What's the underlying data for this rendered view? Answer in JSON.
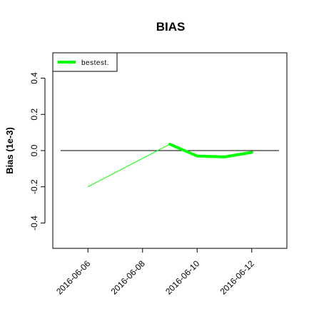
{
  "chart_data": {
    "type": "line",
    "title": "BIAS",
    "xlabel": "",
    "ylabel": "Bias (1e-3)",
    "x_ticks": [
      "2016-06-06",
      "2016-06-08",
      "2016-06-10",
      "2016-06-12"
    ],
    "x_tick_colors": [
      "#000000",
      "#000000",
      "#000000",
      "#ff0000"
    ],
    "y_ticks": [
      -0.4,
      -0.2,
      0.0,
      0.2,
      0.4
    ],
    "xlim": [
      "2016-06-05",
      "2016-06-13"
    ],
    "ylim": [
      -0.54,
      0.54
    ],
    "reference_line": 0,
    "grid": false,
    "legend": {
      "position": "top-left",
      "entries": [
        "bestest."
      ]
    },
    "series": [
      {
        "name": "bestest.",
        "color": "#00ff00",
        "segments": [
          {
            "style": "thin",
            "points": [
              [
                "2016-06-06",
                -0.2
              ],
              [
                "2016-06-09",
                0.035
              ]
            ]
          },
          {
            "style": "thick",
            "points": [
              [
                "2016-06-09",
                0.035
              ],
              [
                "2016-06-10",
                -0.03
              ],
              [
                "2016-06-11",
                -0.035
              ],
              [
                "2016-06-12",
                -0.01
              ]
            ]
          }
        ]
      }
    ]
  }
}
